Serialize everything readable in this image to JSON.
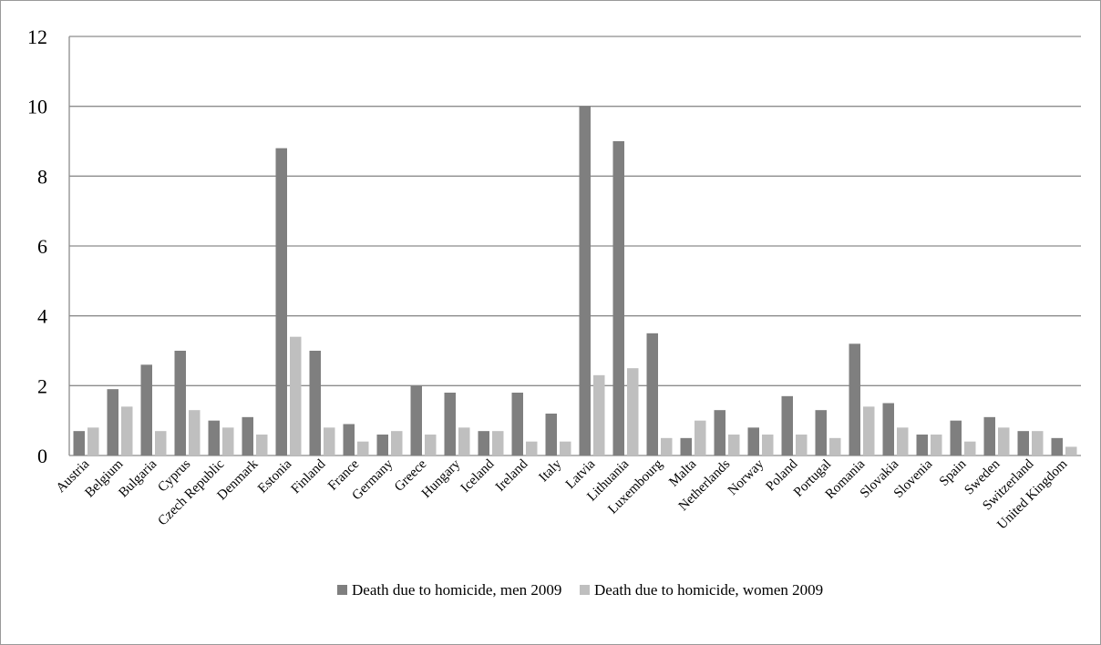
{
  "chart_data": {
    "type": "bar",
    "title": "",
    "xlabel": "",
    "ylabel": "",
    "ylim": [
      0,
      12
    ],
    "yticks": [
      0,
      2,
      4,
      6,
      8,
      10,
      12
    ],
    "grid": true,
    "legend_position": "bottom",
    "categories": [
      "Austria",
      "Belgium",
      "Bulgaria",
      "Cyprus",
      "Czech Republic",
      "Denmark",
      "Estonia",
      "Finland",
      "France",
      "Germany",
      "Greece",
      "Hungary",
      "Iceland",
      "Ireland",
      "Italy",
      "Latvia",
      "Lithuania",
      "Luxembourg",
      "Malta",
      "Netherlands",
      "Norway",
      "Poland",
      "Portugal",
      "Romania",
      "Slovakia",
      "Slovenia",
      "Spain",
      "Sweden",
      "Switzerland",
      "United Kingdom"
    ],
    "series": [
      {
        "name": "Death due to homicide, men 2009",
        "color": "#7f7f7f",
        "values": [
          0.7,
          1.9,
          2.6,
          3.0,
          1.0,
          1.1,
          8.8,
          3.0,
          0.9,
          0.6,
          2.0,
          1.8,
          0.7,
          1.8,
          1.2,
          10.0,
          9.0,
          3.5,
          0.5,
          1.3,
          0.8,
          1.7,
          1.3,
          3.2,
          1.5,
          0.6,
          1.0,
          1.1,
          0.7,
          0.5
        ]
      },
      {
        "name": "Death due to homicide, women 2009",
        "color": "#bfbfbf",
        "values": [
          0.8,
          1.4,
          0.7,
          1.3,
          0.8,
          0.6,
          3.4,
          0.8,
          0.4,
          0.7,
          0.6,
          0.8,
          0.7,
          0.4,
          0.4,
          2.3,
          2.5,
          0.5,
          1.0,
          0.6,
          0.6,
          0.6,
          0.5,
          1.4,
          0.8,
          0.6,
          0.4,
          0.8,
          0.7,
          0.25
        ]
      }
    ],
    "gridline_color": "#8c8c8c"
  }
}
